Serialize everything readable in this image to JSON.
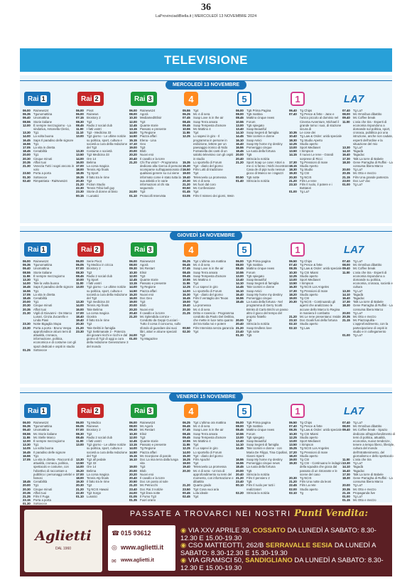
{
  "header": {
    "page_number": "36",
    "line": "LaProvinciadiBiella.it | MERCOLEDÌ 13 NOVEMBRE 2024"
  },
  "section_title": "TELEVISIONE",
  "channels": [
    {
      "id": "rai1",
      "name": "Rai",
      "num": "1"
    },
    {
      "id": "rai2",
      "name": "Rai",
      "num": "2"
    },
    {
      "id": "rai3",
      "name": "Rai",
      "num": "3"
    },
    {
      "id": "rete4",
      "name": "4"
    },
    {
      "id": "canale5",
      "name": "5"
    },
    {
      "id": "italia1",
      "name": "1"
    },
    {
      "id": "la7",
      "name": "LA7"
    }
  ],
  "days": [
    {
      "label": "MERCOLEDÌ 13 NOVEMBRE",
      "columns": [
        [
          "06.00|Rainews24",
          "06.35|Tgunomattina",
          "06.40|Unomattina",
          "08.55|Storie italiane",
          "12.00|È sempre mezzogiorno - La sindutiva, Antonella Clerici,",
          "",
          "13.30|Tg1",
          "14.00|La volta buona",
          "16.45|Saps Il paradiso delle signore",
          "16.55|Tg1",
          "17.05|La vita in diretta",
          "18.45|Cenabilità",
          "20.00|Tg1",
          "20.30|Cinque minuti",
          "20.35|Affari tuoi",
          "21.30|Venezia Tutti i sogni ancora in volo",
          "23.50|Porta a porta",
          "01.30|Sottovoce",
          "02.40|Rimpatriata - RaiNews24"
        ],
        [
          "06.00|Pivot",
          "06.00|Rainews",
          "07.15|Brostory 2",
          "08.30|Tg2",
          "08.45|Radio 2 social club",
          "11.00|I fatti vostri",
          "11.10|Tg2 - Medicina 33",
          "13.00|Tg2 giorno - Le ultime notizie su politica, sport, cultura e società a cura della redazione del Tg2",
          "13.30|Costume e società",
          "13.50|Tg2 Medicina 33",
          "14.00|Ore 14",
          "16.00|Belima",
          "17.00|La corsa magica",
          "18.00|Tennis Atp finals",
          "18.35|Tg Sport",
          "19.35|Il fatto tra le rime",
          "20.30|Tg2",
          "21.20|Fiction Studio",
          "22.30|Tennis Tribù bell guy",
          "23.30|Storie di donne al bivio",
          "00.15|I Lunatici"
        ],
        [
          "06.00|Rainews24",
          "08.00|Agorà",
          "10.30|Mediamed/Elisir",
          "12.00|Tg3",
          "12.45|Quante storie",
          "13.15|Passato e presente",
          "14.00|Tg Regione",
          "14.50|Piazza affari",
          "15.15|Elena - Lina",
          "17.10|Geo",
          "19.00|Tg3",
          "20.00|Blob",
          "20.20|Nuovi eroi",
          "20.40|Il cavallo e la torre",
          "21.20|Chi l'ha visto? - Programma dedicato alla ricerca di persone scomparse sull'appassionato di qualsiasi genere su cui viene informato come è stato tutta la sua attività e le varie informazioni al chi sta seguendo",
          "24.00|Tg3",
          "01.10|Protocolli Intervista"
        ],
        [
          "05.55|Tg4",
          "06.25|Mc 4 di sera",
          "07.45|Soap Love is in the air",
          "08.45|Soap Terra amara",
          "09.45|Soap Tempesta d'amore",
          "10.55|Mc Mattino 4",
          "11.55|Tg4",
          "12.25|Lo sapevi in giro - Il programma in persone in esibizione, lettere per un paesaggio ironico di Nido Fontanella dei canti di un salotto televisivo con gli ospiti in studio",
          "15.35|Lo sportello di Forum",
          "15.30|Tg4 - diario del giorno",
          "16.50|Film Lotti di tradizione",
          "19.00|Tg4",
          "19.40|Telenovela La promessa",
          "20.30|Mc 4 di sera",
          "21.20|Mc fuori dal coro",
          "00.50|Mc Confessione",
          "01.45|Tg4",
          "03.05|Film Il mistero dei giorni, Wein"
        ],
        [
          "06.00|Tg5 Prima Pagina",
          "08.00|Tg5 mattina",
          "08.45|Mattino cinque news",
          "10.55|Forum",
          "13.00|Tg5 spiegato",
          "13.40|Soap Beautiful",
          "14.10|Soap Segreti di famiglia",
          "14.45|Tale Uomini e donne",
          "16.10|Soap Amici",
          "16.40|Soap My home my destiny",
          "16.55|Pomeriggio cinque",
          "18.45|La ruota della fortuna",
          "20.00|Tg5",
          "20.40|Striscia la notizia",
          "21.20|Sport Soap Le cose: Attori a me ci si fanno i Nichi incontrare Casa de di pipi ruolo nessun gioco di Manco se i ragazzi",
          "00.50|Tg5 notte",
          "01.40|Striscia la notizia"
        ],
        [
          "06.40|Tg Chips",
          "07.40|Tg Pesce & fette - Jane e l'unico piccolo al dominio nel Cinema Avventure, Michael il grande tomo i suoi, di stazione sicura di",
          "10.35|Le cose dei",
          "10.40|Tg Law & Order: unità speciale",
          "18.30|Tg Studio Aperto",
          "12.25|Studio aperto",
          "13.00|Sport Mediaset",
          "13.50|I Simpson",
          "14.15|Il nuovo Le Iene - Grandi sorprese di Ricci",
          "17.30|Tg Pressioni di mare",
          "18.15|Studio Aperto",
          "18.30|Tg Studio",
          "19.30|Tg CSI",
          "20.30|Tg NCIS",
          "21.20|Film Le Iene",
          "23.10|Film Il ruolo, il potere e i Bottatori",
          "01.00|Tg La7"
        ],
        [
          "07.40|Tg La7",
          "08.00|Mc Omnibus dibattito",
          "09.40|Mc Coffee break",
          "11.00|L'aria che tira - Esperti di economia rispondono a domande sul politica, sport, cronaca, pubblica poi una istruzione, anche non cadute, esperti dell'ordine e la situazione del mio",
          "13.30|Tg La7",
          "14.10|Tagadà",
          "16.40|Tagadoc",
          "17.30|Talk La torre di Babele",
          "18.30|Gene Parragha di Ruffini - La consuma libera Marco",
          "20.00|Tg La7",
          "20.35|Mc Otto e mezzo",
          "21.15|Film Una grande partenza",
          "23.00|Doc La7 doc",
          "01.00|Tg La7"
        ]
      ]
    },
    {
      "label": "GIOVEDÌ 14 NOVEMBRE",
      "columns": [
        [
          "06.00|Rainews24",
          "06.35|Tgunomattina",
          "06.40|Unomattina",
          "08.55|Storie italiane",
          "11.55|È sempre mezzogiorno",
          "13.30|Tg1",
          "14.00|Tale la volta buona",
          "16.45|Saps Il paradiso delle signore",
          "16.55|Tg1",
          "17.05|La vita in diretta",
          "18.45|Cenabilità",
          "20.00|Tg1",
          "20.30|Cinque minuti",
          "20.35|Affari tuoi",
          "21.30|Vigili di Giovanni - De Marco Lunari, Cinzia Zucarello e Linda Piani",
          "23.30|Notte Bigaglia Stupa",
          "23.30|Porta a porta - Bruno Vespa approfondisce alcuni temi di attualità, cronaca, informazione, politica, economica e di costume con gli spazi dedicati e ospiti in studio",
          "01.25|Sottovoce"
        ],
        [
          "06.00|Serie Pivot",
          "06.05|Tg Medico in cricca",
          "07.00|Brostory 2",
          "08.30|Tg2",
          "08.45|Radio 2 social club",
          "10.00|Tg Sport",
          "11.00|I fatti vostri",
          "13.00|Tg2 giorno - Le ultime notizie su politica, sport, cultura e società a cura della redazione del Tg2",
          "13.30|Tg2 medicina 33",
          "14.00|Tennis Atp finals",
          "16.00|Tale Belima",
          "17.00|La corsa magica",
          "18.40|Giostra",
          "19.40|Il fatto tra le rime",
          "20.30|Tg2",
          "21.20|Tale Delitti in famiglia",
          "23.30|Tg2 Settimanale 2 - Potenza dei giovani ricchi e ricchi e dal giorno di Tg2 di oggi a cura della redazione Generazione 3 del mondo"
        ],
        [
          "06.00|Rainews24",
          "08.00|Agorà",
          "09.30|Mc Restart",
          "10.30|Elisir",
          "12.00|Tg3",
          "12.45|Quante storie",
          "13.15|Passato e presente",
          "14.00|Tg Regione",
          "14.50|Piazza affari",
          "15.20|Nuovi eroi",
          "16.00|Doc Geo",
          "19.00|Tg3",
          "20.00|Blob",
          "20.20|Nuovi eroi",
          "20.40|Il cavallo e la torre",
          "21.20|Mc Splendida cornice - Condotto da Geppi Cucciari - Tutto il corsa il concorso, sullo sfondo di guardare dai suoi libri, attori e alcune speciali",
          "24.00|Tg3",
          "01.00|Tg Magazine"
        ],
        [
          "06.25|Tg4 L'ultima ora mattina",
          "06.45|Mc 4 di sera",
          "07.45|Soap Love is in the air",
          "08.45|Soap Terra amara",
          "09.45|Soap Tempesta d'amore",
          "10.55|Mc Mattino 4",
          "11.55|Tg4",
          "12.25|Il Lo sapevi in giro",
          "14.00|Lo sportello di Forum",
          "15.30|Tg4 - diario del giorno",
          "16.45|Film Il ventaglio dei Texas",
          "19.00|Tg4",
          "19.40|La promessa",
          "20.30|Mc 4 di sera",
          "21.25|Dritto e rovescio - Programma condotto da Paolo Del Debbio, che mette in luce tutto quanto del tra Italia noi e potere",
          "00.50|Film Intervista senza garanzia",
          "02.30|Tg4"
        ],
        [
          "06.00|Tg5 Prima pagina",
          "08.00|Tg5 mattina",
          "08.45|Mattino cinque news",
          "10.55|Forum",
          "13.00|Tg5 spiegato",
          "13.40|Soap Beautiful",
          "14.10|Soap Segreti di famiglia",
          "14.45|Tale Uomini e donne",
          "16.10|Soap Amici",
          "16.40|Soap My home my destiny",
          "16.55|Pomeriggio cinque",
          "18.45|La ruota della fortuna - Nel programma di Gerry Scotti Brinks di Carlo Brichi un passo altro il gioco del tempo del proprio fratello",
          "20.00|Tg5",
          "20.40|Striscia la notizia",
          "21.20|Soap Endless love",
          "23.40|Tg5 notte",
          "01.30|Tg5"
        ],
        [
          "06.50|Tg Chips",
          "07.40|Tg Pesce & fette",
          "08.35|Tg Law & Order: unità speciale",
          "10.30|Tg CSI Miami",
          "12.25|Studio aperto",
          "13.00|Sport Mediaset",
          "13.50|I Simpson",
          "16.30|Tg NCIS Los Angeles",
          "17.30|Tg Pressioni di mare",
          "18.20|Studio aperto",
          "19.00|Tg CSI",
          "20.30|Tg NCIS - Continuando gli agenti che analizzano le accuse dello Marco lo Regina in maniera il combatto",
          "21.20|Mc Le Iene presentano: Inside",
          "23.10|Doc Goalii funi della fortuna",
          "02.10|Studio aperto",
          "02.10|Tg Law"
        ],
        [
          "07.40|Tg La7",
          "08.00|Mc Omnibus dibattito",
          "09.40|Mc Coffee break",
          "11.00|L'aria che tira - Esperti di economia rispondono a domande su politica, economia, cronaca, società e cultura",
          "13.30|Tg La7",
          "14.10|Tagadà",
          "16.40|Tagadoc",
          "17.30|Talk La torre di Babele",
          "18.30|Gene Parragha di Ruffini - La consuma libera Marco",
          "20.00|Tg La7",
          "20.35|Mc Otto e mezzo",
          "21.15|Mc Piazzapulita - L'approfondimento, con la partecipazione di ospiti in studio e in collegamento",
          "01.00|Tg La7"
        ]
      ]
    },
    {
      "label": "VENERDÌ 15 NOVEMBRE",
      "columns": [
        [
          "06.00|Rainews24",
          "06.35|Tgunomattina",
          "06.40|Unomattina",
          "08.55|Mc Storie italiane",
          "11.55|Mc Stelle Marco",
          "12.00|È sempre mezzogiorno",
          "13.30|Tg1",
          "14.05|La volta buona",
          "16.45|Il paradiso delle signore",
          "16.55|Tg1",
          "17.05|La vita in diretta - Racconti di attualità, cronaca, politica, spettacolo e costume, con l'obiettivo di raccontare a pubblico i personaggi celebri e famosi",
          "18.45|Cenabilità",
          "20.00|Tg1",
          "20.30|Cinque minuti",
          "20.35|Affari tuoi",
          "21.25|Film Il Fuga",
          "23.15|Porta a porta",
          "01.30|Sottovoce"
        ],
        [
          "06.00|Tg Medico",
          "06.05|Rainews",
          "07.00|Brostory 2",
          "08.30|Tg2",
          "08.45|Radio 2 social club",
          "11.00|I fatti vostri",
          "13.00|Tg2 giorno - Le ultime notizie su politica, sport, cultura e società a cura della redazione del Tg2",
          "13.30|Tg2 all pedale",
          "13.50|Tg2 33",
          "14.00|Ore 14",
          "15.20|Belima",
          "17.00|La corsa magica",
          "18.00|Tennis Atp finals",
          "19.30|Il fatto tra le rime",
          "20.30|Tg2",
          "21.20|Tg NCIS Hawaii",
          "22.30|Tg2 Sorgo",
          "01.10|Lunatici"
        ],
        [
          "06.00|Rainews24",
          "08.00|Mc Agorà",
          "09.30|Mc Restart",
          "10.30|Elisir",
          "12.00|Tg3",
          "12.45|Quante storie",
          "13.15|Passato e presente",
          "14.00|Tg Regione",
          "14.50|Piazza affari",
          "15.15|Mc Scorpione di parole",
          "16.10|Doc La mia terra dalla lunga vita",
          "19.00|Tg3",
          "20.00|Blob",
          "20.20|Nuovi eroi",
          "20.40|Il cavallo e la torre",
          "20.50|Doc Un posto al sole",
          "21.20|Mc Petrocchi",
          "23.40|Doc Rai 3 notizie",
          "24.00|Tg3 linea notte",
          "01.05|Il Fumo Tg3",
          "01.35|Fuori orario"
        ],
        [
          "06.25|Tg4 L'ultima ora mattina",
          "06.45|Mc 4 di sera",
          "07.45|Soap Love is in the air",
          "08.45|Soap Terra amara",
          "09.45|Soap Tempesta d'amore",
          "10.55|Mc Mattino 4",
          "11.55|Tg4",
          "12.25|Il Lo sapevi in giro",
          "14.00|Lo sportello di Forum",
          "15.30|Tg4 - diario del giorno",
          "16.25|Film Apaché",
          "19.00|Tg4",
          "19.40|Telenovela La promessa",
          "20.30|Mc 4 di sera - Un'ora di approfondimento su temi del momento, con informazione e dibattito",
          "21.20|Quarto grado",
          "23.50|Tg4 Cosa vuoi aria",
          "00.45|Lola ideale",
          "02.45|Tg4"
        ],
        [
          "06.00|Tg5 Prima pagina",
          "08.00|Tg5 mattina",
          "08.45|Mattino cinque news",
          "10.55|Forum",
          "13.00|Tg5 spiegato",
          "13.40|Soap Beautiful",
          "14.10|Soap Segreti di famiglia",
          "14.45|Tale Uomini e donne - con Maria De Filippi, Tina Cipollari, Gianni Sperti",
          "16.55|Soap My home my destiny",
          "16.55|Pomeriggio cinque news",
          "18.45|La ruota della fortuna",
          "20.00|Tg5",
          "20.40|Striscia la notizia",
          "21.20|Film Il pensiero 2",
          "23.40|Tg5",
          "00.10|Film Il ruolo per tutti i realizzatori",
          "02.20|Striscia la notizia"
        ],
        [
          "06.50|Tg Chips",
          "07.40|Tg Pesce & fette",
          "08.35|Tg Law & Order: unità speciale",
          "10.30|Tg CSI Miami",
          "12.25|Studio aperto",
          "13.00|Sport Mediaset",
          "13.50|I Simpson",
          "15.25|Tg NCIS Los Angeles",
          "17.20|Tg Pressioni di mare",
          "18.20|Studio aperto",
          "19.00|Tg CSI",
          "19.30|Tg CSI - Continuano le indagini della squadra che gioca dal passato di un ristorante e le scene del caso",
          "20.30|Tg NCIS",
          "21.20|Film Una notte da leoni",
          "22.45|Film La rete",
          "02.00|Studio aperto",
          "02.10|Tg"
        ],
        [
          "07.40|Tg La7",
          "08.00|Mc Omnibus dibattito",
          "09.40|Mc Coffee break - Spazio dedicato all'approfondimento di temi di politica, attualità, economia, nuove tendenze, tenere a tempo libero, lifestyle, cultura del mondo dell'intrattenimento, del giornalismo e dello spettacolo",
          "11.00|L'aria che tira",
          "13.30|Tg La7",
          "14.10|Tagadà",
          "16.40|Tagadoc",
          "17.30|Talk La torre di Babele",
          "18.30|Gene Parragha di Ruffini - La consuma libera Marco",
          "20.00|Tg La7",
          "20.35|Mc Otto e mezzo",
          "21.15|Propaganda live",
          "01.00|Tg La7",
          "01.15|Mc Otto e mezzo"
        ]
      ]
    }
  ],
  "ad": {
    "headline_pre": "PASSATE A TROVARCI NEI NOSTRI",
    "headline_strong": "Punti Vendita:",
    "brand": "Aglietti",
    "brand_since": "DAL 1960",
    "phone": "015 93612",
    "web": "www.aglietti.it",
    "web2": "www.aglietti.it",
    "addresses": [
      {
        "pre": "VIA XXV APRILE 39,",
        "city": "COSSATO",
        "post": "DA LUNEDÌ A SABATO: 8.30-12.30 E 15.00-19.30"
      },
      {
        "pre": "CSO MATTEOTTI, 262/B",
        "city": "SERRAVALLE SESIA",
        "post": "DA LUNEDÌ A SABATO: 8.30-12.30 E 15.30-19.30"
      },
      {
        "pre": "VIA GRAMSCI 50,",
        "city": "SANDIGLIANO",
        "post": "DA LUNEDÌ A SABATO: 8.30-12.30 E 15.00-19.30"
      }
    ]
  },
  "colors": {
    "band": "#28a0d8",
    "day_bg": "#eaf5fb",
    "rai1": "#1a73b8",
    "rai2": "#c62828",
    "rai3": "#1e9a3c",
    "ad_bg": "#5b1f24",
    "accent": "#e8c84a"
  }
}
